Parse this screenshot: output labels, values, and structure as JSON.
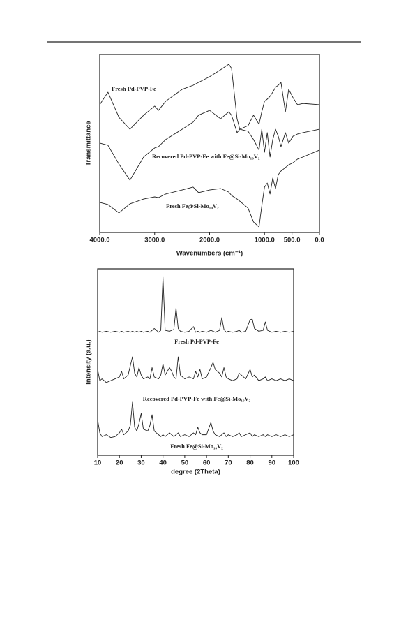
{
  "chart_data": [
    {
      "type": "line",
      "xlabel": "Wavenumbers (cm⁻¹)",
      "ylabel": "Transmittance",
      "x": [
        4000,
        3850,
        3650,
        3450,
        3200,
        3000,
        2930,
        2800,
        2500,
        2300,
        2200,
        2000,
        1800,
        1650,
        1600,
        1500,
        1450,
        1300,
        1200,
        1100,
        1050,
        1000,
        950,
        900,
        850,
        800,
        750,
        700,
        620,
        560,
        480,
        400,
        300,
        0
      ],
      "xlim": [
        4000,
        0
      ],
      "xticks": [
        {
          "value": 4000,
          "label": "4000.0"
        },
        {
          "value": 3000,
          "label": "3000.0"
        },
        {
          "value": 2000,
          "label": "2000.0"
        },
        {
          "value": 1000,
          "label": "1000.0"
        },
        {
          "value": 500,
          "label": "500.0"
        },
        {
          "value": 0,
          "label": "0.0"
        }
      ],
      "ylim": [
        0,
        100
      ],
      "series": [
        {
          "name": "Fresh Pd-PVP-Fe",
          "color": "#222222",
          "values": [
            71.8,
            78.8,
            64.7,
            58.0,
            65.9,
            71.0,
            68.6,
            73.7,
            80.4,
            82.7,
            84.3,
            87.5,
            91.4,
            94.5,
            92.2,
            63.9,
            58.0,
            60.0,
            65.9,
            60.8,
            67.8,
            73.7,
            74.9,
            76.5,
            78.8,
            81.6,
            82.7,
            84.3,
            67.8,
            80.4,
            75.7,
            71.8,
            72.5,
            71.8
          ]
        },
        {
          "name": "Recovered Pd-PVP-Fe with Fe@Si-Mo₁₀V₂",
          "color": "#222222",
          "values": [
            50.2,
            49.0,
            38.4,
            29.4,
            42.4,
            47.5,
            48.2,
            52.2,
            58.0,
            62.0,
            65.9,
            68.6,
            63.9,
            67.8,
            65.9,
            56.1,
            58.0,
            56.9,
            52.2,
            46.3,
            58.0,
            45.1,
            56.1,
            42.4,
            52.2,
            58.0,
            54.1,
            48.2,
            56.1,
            50.2,
            54.1,
            55.3,
            56.1,
            58.0
          ]
        },
        {
          "name": "Fresh Fe@Si-Mo₁₀V₂",
          "color": "#222222",
          "values": [
            16.9,
            15.7,
            11.0,
            16.1,
            18.8,
            20.0,
            19.6,
            21.6,
            23.9,
            25.5,
            22.4,
            23.9,
            24.7,
            22.7,
            20.8,
            18.8,
            17.6,
            13.7,
            5.9,
            3.1,
            14.9,
            25.5,
            27.8,
            21.6,
            30.6,
            24.7,
            32.5,
            34.5,
            36.5,
            38.0,
            39.2,
            41.2,
            42.4,
            46.3
          ]
        }
      ]
    },
    {
      "type": "line",
      "xlabel": "degree (2Theta)",
      "ylabel": "Intensity (a.u.)",
      "x": [
        10,
        11,
        12,
        14,
        16,
        18,
        20,
        21,
        22,
        24,
        25,
        26,
        27,
        28,
        29,
        30,
        31,
        33,
        34,
        35,
        36,
        38,
        39,
        40,
        41,
        43,
        44,
        45,
        46,
        47,
        48,
        50,
        52,
        54,
        55,
        56,
        57,
        58,
        60,
        62,
        63,
        64,
        66,
        67,
        68,
        69,
        70,
        72,
        74,
        75,
        76,
        78,
        80,
        81,
        82,
        84,
        86,
        87,
        88,
        90,
        92,
        94,
        96,
        98,
        100
      ],
      "xlim": [
        10,
        100
      ],
      "xticks": [
        10,
        20,
        30,
        40,
        50,
        60,
        70,
        80,
        90,
        100
      ],
      "ylim": [
        0,
        100
      ],
      "series": [
        {
          "name": "Fresh Pd-PVP-Fe",
          "color": "#222222",
          "values": [
            66,
            66.5,
            66,
            66.5,
            66,
            66.5,
            66,
            66.5,
            66,
            66.5,
            66,
            66.5,
            66,
            66.5,
            66,
            66.5,
            66,
            66.5,
            66,
            67,
            68,
            66,
            67,
            95.5,
            67,
            66.5,
            67,
            67.5,
            79,
            68,
            66.5,
            66,
            66.5,
            69,
            66,
            66.5,
            66,
            66.5,
            66,
            67,
            66.5,
            66,
            67,
            73.8,
            67.5,
            66,
            66.5,
            66,
            66.5,
            67,
            66,
            66.5,
            72.7,
            73,
            68,
            66.5,
            67,
            71.5,
            67,
            66,
            66.5,
            66,
            66.5,
            66,
            66.5
          ]
        },
        {
          "name": "Recovered Pd-PVP-Fe with Fe@Si-Mo₁₀V₂",
          "color": "#222222",
          "values": [
            46,
            40,
            41,
            39,
            40,
            41,
            42,
            45,
            41,
            43,
            48,
            52.8,
            44,
            42,
            47,
            43,
            41,
            42,
            41,
            47,
            42,
            41,
            43,
            49,
            43,
            47,
            45,
            42,
            41,
            52.8,
            43,
            41,
            42,
            41,
            45,
            42,
            46,
            41,
            42,
            47,
            49.8,
            46,
            44,
            42,
            47,
            42,
            41,
            40,
            41,
            44,
            43,
            41,
            46,
            42,
            43,
            40,
            41,
            42,
            40,
            41,
            40,
            41,
            40,
            41,
            40
          ]
        },
        {
          "name": "Fresh Fe@Si-Mo₁₀V₂",
          "color": "#222222",
          "values": [
            19,
            12,
            10,
            11,
            9.5,
            10,
            12,
            14,
            11,
            13,
            16,
            28.5,
            15,
            13,
            17,
            22.4,
            14,
            13,
            16,
            21.7,
            13,
            11,
            10,
            11,
            10,
            12,
            11,
            10,
            11,
            12,
            10,
            11,
            10,
            12,
            11,
            15,
            12,
            11,
            11,
            17.6,
            13,
            11,
            10,
            11,
            12,
            10,
            11,
            10,
            11,
            12,
            10,
            11,
            12,
            10,
            11,
            10,
            11,
            10,
            11,
            10,
            11,
            10,
            11,
            10,
            11
          ]
        }
      ]
    }
  ]
}
